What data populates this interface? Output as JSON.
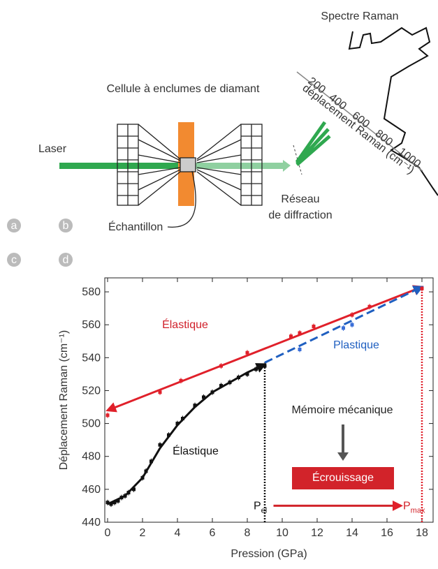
{
  "diagram": {
    "spectrum_title": "Spectre Raman",
    "cell": "Cellule à enclumes de diamant",
    "laser": "Laser",
    "sample": "Échantillon",
    "grating": [
      "Réseau",
      "de diffraction"
    ],
    "raman_axis": "déplacement Raman (cm⁻¹)",
    "raman_ticks": [
      "200",
      "400",
      "600",
      "800",
      "1000"
    ],
    "panels": [
      "a",
      "b",
      "c",
      "d"
    ]
  },
  "chart_data": {
    "type": "scatter",
    "xlabel": "Pression (GPa)",
    "ylabel": "Déplacement Raman (cm⁻¹)",
    "xlim": [
      -0.16,
      18.64
    ],
    "ylim": [
      440,
      588.5
    ],
    "xticks": [
      0,
      2,
      4,
      6,
      8,
      10,
      12,
      14,
      16,
      18
    ],
    "yticks": [
      440,
      460,
      480,
      500,
      520,
      540,
      560,
      580
    ],
    "series": [
      {
        "color": "#111111",
        "x": [
          0,
          0.2,
          0.4,
          0.6,
          0.8,
          1.0,
          1.2,
          1.5,
          2.0,
          2.2,
          2.5,
          3.0,
          3.5,
          4.0,
          4.3,
          5.0,
          5.5,
          6.0,
          6.5,
          7.0,
          7.5,
          8.0,
          8.5,
          9.0
        ],
        "values": [
          452,
          451,
          452,
          453,
          455,
          456,
          458,
          460,
          467,
          471,
          477,
          487,
          493,
          500,
          503,
          511,
          516,
          519,
          523,
          525,
          528,
          530,
          533,
          535
        ]
      },
      {
        "color": "#e0202a",
        "x": [
          0,
          3,
          4.2,
          6.5,
          8,
          10.5,
          11,
          11.8,
          14,
          15,
          18
        ],
        "values": [
          505,
          519,
          526,
          535,
          543,
          553,
          555,
          559,
          566,
          571,
          582
        ]
      },
      {
        "color": "#3b6fd8",
        "x": [
          11,
          13.5,
          14
        ],
        "values": [
          545,
          558,
          560
        ]
      }
    ],
    "fits": [
      {
        "color": "#e0202a",
        "style": "solid",
        "x": [
          0,
          18
        ],
        "values": [
          508,
          583
        ]
      },
      {
        "color": "#1f5fc0",
        "style": "dashed",
        "x": [
          9,
          18
        ],
        "values": [
          537,
          583
        ]
      },
      {
        "color": "#111111",
        "style": "solid",
        "x": [
          0,
          1,
          2,
          3,
          4,
          5,
          6,
          7,
          8,
          9
        ],
        "values": [
          451,
          456,
          467,
          485,
          499,
          510,
          519,
          525,
          531,
          536
        ]
      }
    ],
    "vlines": [
      {
        "color": "#111111",
        "x": 9
      },
      {
        "color": "#e0202a",
        "x": 18
      }
    ],
    "annotations": [
      {
        "text": "Élastique",
        "color": "#d0202a"
      },
      {
        "text": "Plastique",
        "color": "#1f5fc0"
      },
      {
        "text": "Élastique",
        "color": "#111111"
      },
      {
        "text": "Mémoire mécanique",
        "color": "#222222"
      },
      {
        "text": "Écrouissage",
        "color": "#ffffff"
      }
    ],
    "p_el": {
      "main": "P",
      "sub": "el"
    },
    "p_max": {
      "main": "P",
      "sub": "max"
    }
  }
}
